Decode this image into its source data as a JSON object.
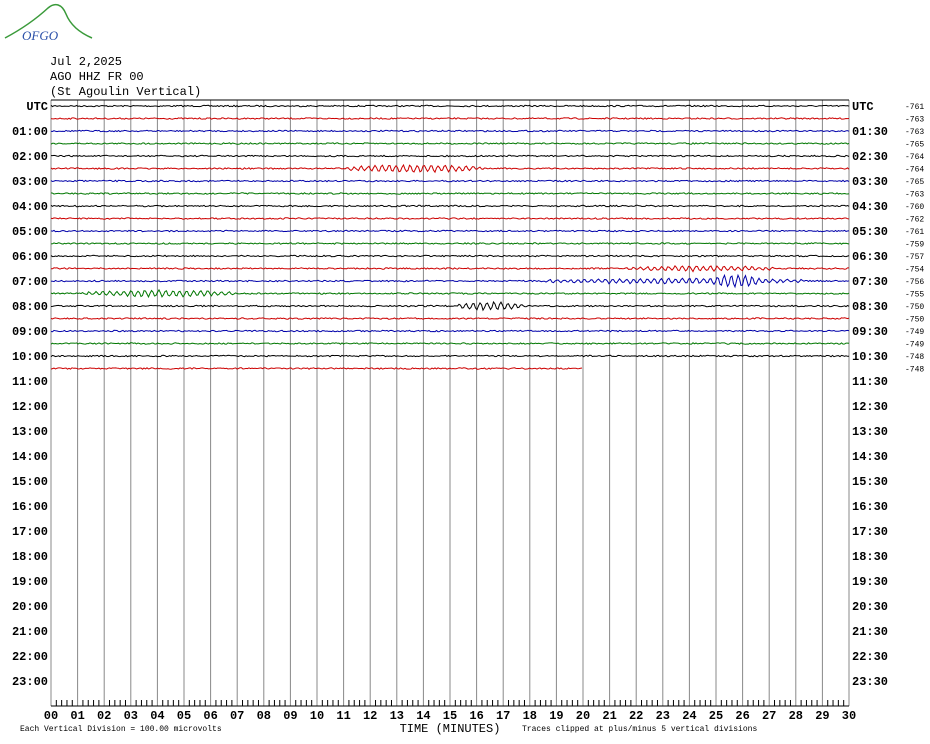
{
  "header": {
    "logo": "OFGO",
    "date": "Jul 2,2025",
    "station": "AGO HHZ FR 00",
    "location": "(St Agoulin Vertical)"
  },
  "left_labels": [
    "UTC",
    "01:00",
    "02:00",
    "03:00",
    "04:00",
    "05:00",
    "06:00",
    "07:00",
    "08:00",
    "09:00",
    "10:00",
    "11:00",
    "12:00",
    "13:00",
    "14:00",
    "15:00",
    "16:00",
    "17:00",
    "18:00",
    "19:00",
    "20:00",
    "21:00",
    "22:00",
    "23:00"
  ],
  "right_labels": [
    "UTC",
    "01:30",
    "02:30",
    "03:30",
    "04:30",
    "05:30",
    "06:30",
    "07:30",
    "08:30",
    "09:30",
    "10:30",
    "11:30",
    "12:30",
    "13:30",
    "14:30",
    "15:30",
    "16:30",
    "17:30",
    "18:30",
    "19:30",
    "20:30",
    "21:30",
    "22:30",
    "23:30"
  ],
  "trace_offsets": [
    "-761",
    "-763",
    "-763",
    "-765",
    "-764",
    "-764",
    "-765",
    "-763",
    "-760",
    "-762",
    "-761",
    "-759",
    "-757",
    "-754",
    "-756",
    "-755",
    "-750",
    "-750",
    "-749",
    "-749",
    "-748",
    "-748"
  ],
  "x_axis": {
    "title": "TIME (MINUTES)",
    "ticks": [
      "00",
      "01",
      "02",
      "03",
      "04",
      "05",
      "06",
      "07",
      "08",
      "09",
      "10",
      "11",
      "12",
      "13",
      "14",
      "15",
      "16",
      "17",
      "18",
      "19",
      "20",
      "21",
      "22",
      "23",
      "24",
      "25",
      "26",
      "27",
      "28",
      "29",
      "30"
    ]
  },
  "footer": {
    "scale": "Each Vertical Division =  100.00 microvolts",
    "clip": "Traces clipped at plus/minus 5 vertical divisions"
  }
}
